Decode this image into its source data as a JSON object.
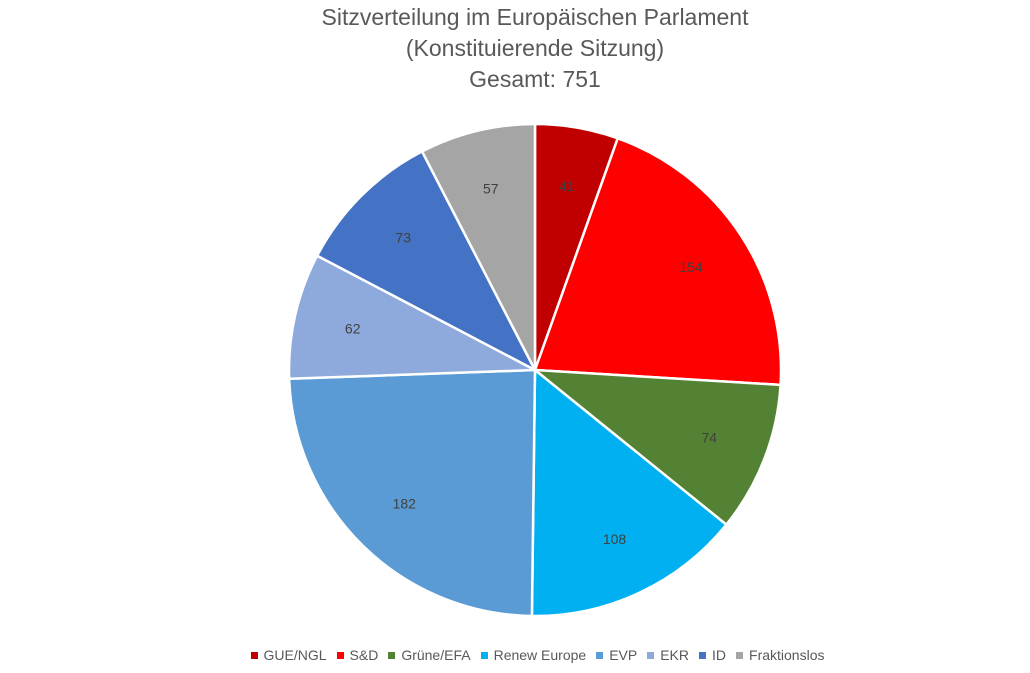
{
  "chart_data": {
    "type": "pie",
    "title_lines": [
      "Sitzverteilung im Europäischen Parlament",
      "(Konstituierende Sitzung)",
      "Gesamt: 751"
    ],
    "categories": [
      "GUE/NGL",
      "S&D",
      "Grüne/EFA",
      "Renew Europe",
      "EVP",
      "EKR",
      "ID",
      "Fraktionslos"
    ],
    "values": [
      41,
      154,
      74,
      108,
      182,
      62,
      73,
      57
    ],
    "colors": [
      "#C00000",
      "#FF0000",
      "#548235",
      "#00B0F0",
      "#5B9BD5",
      "#8EA9DB",
      "#4472C4",
      "#A5A5A5"
    ],
    "data_labels": [
      "41",
      "154",
      "74",
      "108",
      "182",
      "62",
      "73",
      "57"
    ],
    "start_angle_deg": 0,
    "direction": "clockwise",
    "legend_position": "bottom",
    "slice_border_color": "#FFFFFF"
  }
}
